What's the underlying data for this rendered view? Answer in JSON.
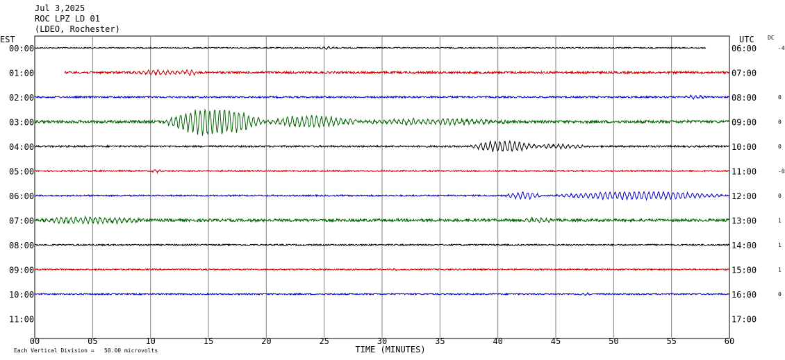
{
  "header": {
    "date": "Jul 3,2025",
    "station": "ROC LPZ LD 01",
    "network": "(LDEO, Rochester)"
  },
  "chart_data": {
    "type": "line",
    "xlabel": "TIME (MINUTES)",
    "x_ticks": [
      "00",
      "05",
      "10",
      "15",
      "20",
      "25",
      "30",
      "35",
      "40",
      "45",
      "50",
      "55",
      "60"
    ],
    "xlim": [
      0,
      60
    ],
    "left_axis_label": "EST",
    "right_axis_label": "UTC",
    "dc_label": "DC",
    "left_times": [
      "00:00",
      "01:00",
      "02:00",
      "03:00",
      "04:00",
      "05:00",
      "06:00",
      "07:00",
      "08:00",
      "09:00",
      "10:00",
      "11:00"
    ],
    "right_times": [
      "06:00",
      "07:00",
      "08:00",
      "09:00",
      "10:00",
      "11:00",
      "12:00",
      "13:00",
      "14:00",
      "15:00",
      "16:00",
      "17:00"
    ],
    "dc_values": [
      "-4",
      "",
      "0",
      "0",
      "0",
      "-0",
      "0",
      "1",
      "1",
      "1",
      "0",
      ""
    ],
    "scale_note": "Each Vertical Division =   50.00 microvolts",
    "trace_colors": [
      "#000000",
      "#cc0000",
      "#0000cc",
      "#006400"
    ],
    "series": [
      {
        "line": 0,
        "start_min": 0,
        "end_min": 58,
        "noise": 0.8,
        "events": [
          {
            "t0": 24.5,
            "t1": 26,
            "amp": 2
          }
        ]
      },
      {
        "line": 1,
        "start_min": 2.6,
        "end_min": 60,
        "noise": 1.6,
        "events": [
          {
            "t0": 8,
            "t1": 14,
            "amp": 3
          },
          {
            "t0": 13,
            "t1": 14,
            "amp": 4
          }
        ]
      },
      {
        "line": 2,
        "start_min": 0,
        "end_min": 60,
        "noise": 1.2,
        "events": [
          {
            "t0": 56,
            "t1": 58,
            "amp": 2.5
          }
        ]
      },
      {
        "line": 3,
        "start_min": 0,
        "end_min": 60,
        "noise": 2.0,
        "events": [
          {
            "t0": 11,
            "t1": 20,
            "amp": 20
          },
          {
            "t0": 19.5,
            "t1": 28,
            "amp": 8
          },
          {
            "t0": 27,
            "t1": 42,
            "amp": 4
          }
        ]
      },
      {
        "line": 4,
        "start_min": 0,
        "end_min": 60,
        "noise": 1.2,
        "events": [
          {
            "t0": 37.5,
            "t1": 43.5,
            "amp": 8
          },
          {
            "t0": 43,
            "t1": 48,
            "amp": 3
          }
        ]
      },
      {
        "line": 5,
        "start_min": 0,
        "end_min": 60,
        "noise": 1.0,
        "events": [
          {
            "t0": 10,
            "t1": 11,
            "amp": 2
          }
        ]
      },
      {
        "line": 6,
        "start_min": 0,
        "end_min": 60,
        "noise": 1.0,
        "events": [
          {
            "t0": 40.5,
            "t1": 44,
            "amp": 5
          },
          {
            "t0": 44.5,
            "t1": 60,
            "amp": 6
          }
        ]
      },
      {
        "line": 7,
        "start_min": 0,
        "end_min": 60,
        "noise": 2.0,
        "events": [
          {
            "t0": 0,
            "t1": 10,
            "amp": 5
          },
          {
            "t0": 42,
            "t1": 45,
            "amp": 3
          }
        ]
      },
      {
        "line": 8,
        "start_min": 0,
        "end_min": 60,
        "noise": 1.0,
        "events": []
      },
      {
        "line": 9,
        "start_min": 0,
        "end_min": 60,
        "noise": 1.0,
        "events": [
          {
            "t0": 30.5,
            "t1": 31.5,
            "amp": 2
          }
        ]
      },
      {
        "line": 10,
        "start_min": 0,
        "end_min": 60,
        "noise": 1.0,
        "events": [
          {
            "t0": 47,
            "t1": 48,
            "amp": 2
          }
        ]
      }
    ]
  }
}
